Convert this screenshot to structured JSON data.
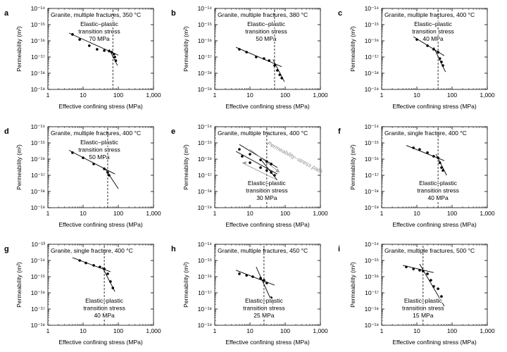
{
  "chart_data": [
    {
      "type": "scatter",
      "panel_label": "a",
      "title": "Granite, multiple fractures, 350 °C",
      "xlabel": "Effective confining stress (MPa)",
      "ylabel": "Permeability (m²)",
      "xscale": "log",
      "yscale": "log",
      "xlim": [
        1,
        1000
      ],
      "ylim": [
        -19,
        -14
      ],
      "x_ticks": [
        "1",
        "10",
        "100",
        "1,000"
      ],
      "y_ticks": [
        "10⁻¹⁹",
        "10⁻¹⁸",
        "10⁻¹⁷",
        "10⁻¹⁶",
        "10⁻¹⁵",
        "10⁻¹⁴"
      ],
      "transition_stress": 70,
      "annotation": [
        "Elastic–plastic",
        "transition stress",
        "70 MPa"
      ],
      "annotation_position": "upper-middle",
      "points": [
        [
          5,
          2.5e-16
        ],
        [
          8,
          1.2e-16
        ],
        [
          15,
          5e-17
        ],
        [
          25,
          3e-17
        ],
        [
          40,
          2.5e-17
        ],
        [
          55,
          2.3e-17
        ],
        [
          65,
          2e-17
        ],
        [
          75,
          1.5e-17
        ],
        [
          80,
          1e-17
        ],
        [
          85,
          6e-18
        ]
      ],
      "fit_lines": [
        [
          [
            4,
            3e-16
          ],
          [
            100,
            1.3e-17
          ]
        ],
        [
          [
            55,
            3e-17
          ],
          [
            95,
            3e-18
          ]
        ]
      ]
    },
    {
      "type": "scatter",
      "panel_label": "b",
      "title": "Granite, multiple fractures, 380 °C",
      "xlabel": "Effective confining stress (MPa)",
      "ylabel": "Permeability (m²)",
      "xscale": "log",
      "yscale": "log",
      "xlim": [
        1,
        1000
      ],
      "ylim": [
        -19,
        -14
      ],
      "x_ticks": [
        "1",
        "10",
        "100",
        "1,000"
      ],
      "y_ticks": [
        "10⁻¹⁹",
        "10⁻¹⁸",
        "10⁻¹⁷",
        "10⁻¹⁶",
        "10⁻¹⁵",
        "10⁻¹⁴"
      ],
      "transition_stress": 50,
      "annotation": [
        "Elastic–plastic",
        "transition stress",
        "50 MPa"
      ],
      "annotation_position": "upper-middle",
      "points": [
        [
          5,
          3e-17
        ],
        [
          8,
          2e-17
        ],
        [
          15,
          1e-17
        ],
        [
          25,
          8e-18
        ],
        [
          35,
          6e-18
        ],
        [
          50,
          3e-18
        ],
        [
          60,
          1.5e-18
        ],
        [
          70,
          8e-19
        ],
        [
          80,
          5e-19
        ]
      ],
      "fit_lines": [
        [
          [
            4,
            4e-17
          ],
          [
            80,
            2.5e-18
          ]
        ],
        [
          [
            45,
            7e-18
          ],
          [
            95,
            3e-19
          ]
        ]
      ]
    },
    {
      "type": "scatter",
      "panel_label": "c",
      "title": "Granite, multiple fractures, 400 °C",
      "xlabel": "Effective confining stress (MPa)",
      "ylabel": "Permeability (m²)",
      "xscale": "log",
      "yscale": "log",
      "xlim": [
        1,
        1000
      ],
      "ylim": [
        -19,
        -14
      ],
      "x_ticks": [
        "1",
        "10",
        "100",
        "1,000"
      ],
      "y_ticks": [
        "10⁻¹⁹",
        "10⁻¹⁸",
        "10⁻¹⁷",
        "10⁻¹⁶",
        "10⁻¹⁵",
        "10⁻¹⁴"
      ],
      "transition_stress": 40,
      "annotation": [
        "Elastic–plastic",
        "transition stress",
        "40 MPa"
      ],
      "annotation_position": "upper-middle",
      "points": [
        [
          10,
          1.2e-16
        ],
        [
          20,
          5e-17
        ],
        [
          30,
          3e-17
        ],
        [
          40,
          2e-17
        ],
        [
          45,
          8e-18
        ],
        [
          50,
          5e-18
        ],
        [
          55,
          3e-18
        ]
      ],
      "fit_lines": [
        [
          [
            8,
            1.8e-16
          ],
          [
            60,
            1.2e-17
          ]
        ],
        [
          [
            30,
            4e-17
          ],
          [
            65,
            1.2e-18
          ]
        ]
      ]
    },
    {
      "type": "scatter",
      "panel_label": "d",
      "title": "Granite, multiple fractures, 400 °C",
      "xlabel": "Effective confining stress (MPa)",
      "ylabel": "Permeability (m²)",
      "xscale": "log",
      "yscale": "log",
      "xlim": [
        1,
        1000
      ],
      "ylim": [
        -19,
        -14
      ],
      "x_ticks": [
        "1",
        "10",
        "100",
        "1,000"
      ],
      "y_ticks": [
        "10⁻¹⁹",
        "10⁻¹⁸",
        "10⁻¹⁷",
        "10⁻¹⁶",
        "10⁻¹⁵",
        "10⁻¹⁴"
      ],
      "transition_stress": 50,
      "annotation": [
        "Elastic–plastic",
        "transition stress",
        "50 MPa"
      ],
      "annotation_position": "upper-middle",
      "points": [
        [
          5,
          2.5e-16
        ],
        [
          10,
          1.2e-16
        ],
        [
          20,
          5e-17
        ],
        [
          40,
          2.5e-17
        ],
        [
          50,
          1.5e-17
        ],
        [
          55,
          1e-17
        ]
      ],
      "fit_lines": [
        [
          [
            4,
            3.5e-16
          ],
          [
            80,
            1.2e-17
          ]
        ],
        [
          [
            40,
            3e-17
          ],
          [
            100,
            1.5e-18
          ]
        ]
      ]
    },
    {
      "type": "scatter",
      "panel_label": "e",
      "title": "Granite, multiple fractures, 400 °C",
      "xlabel": "Effective confining stress (MPa)",
      "ylabel": "Permeability (m²)",
      "xscale": "log",
      "yscale": "log",
      "xlim": [
        1,
        1000
      ],
      "ylim": [
        -19,
        -14
      ],
      "x_ticks": [
        "1",
        "10",
        "100",
        "1,000"
      ],
      "y_ticks": [
        "10⁻¹⁹",
        "10⁻¹⁸",
        "10⁻¹⁷",
        "10⁻¹⁶",
        "10⁻¹⁵",
        "10⁻¹⁴"
      ],
      "transition_stress": 30,
      "annotation": [
        "Elastic–plastic",
        "transition stress",
        "30 MPa"
      ],
      "annotation_position": "lower-middle",
      "path_label": "Permeability–stress path",
      "points": [
        [
          5,
          4e-16
        ],
        [
          10,
          2e-16
        ],
        [
          20,
          9e-17
        ],
        [
          30,
          7e-17
        ],
        [
          40,
          5e-17
        ],
        [
          6,
          1.5e-16
        ],
        [
          10,
          6e-17
        ],
        [
          20,
          3e-17
        ],
        [
          30,
          2e-17
        ],
        [
          40,
          1.5e-17
        ],
        [
          50,
          1e-17
        ]
      ],
      "fit_lines": [
        [
          [
            5,
            8e-16
          ],
          [
            60,
            3e-17
          ]
        ],
        [
          [
            4,
            3e-16
          ],
          [
            60,
            1.2e-17
          ]
        ],
        [
          [
            20,
            1e-16
          ],
          [
            60,
            5e-18
          ]
        ]
      ]
    },
    {
      "type": "scatter",
      "panel_label": "f",
      "title": "Granite, single fracture, 400 °C",
      "xlabel": "Effective confining stress (MPa)",
      "ylabel": "Permeability (m²)",
      "xscale": "log",
      "yscale": "log",
      "xlim": [
        1,
        1000
      ],
      "ylim": [
        -19,
        -14
      ],
      "x_ticks": [
        "1",
        "10",
        "100",
        "1,000"
      ],
      "y_ticks": [
        "10⁻¹⁹",
        "10⁻¹⁸",
        "10⁻¹⁷",
        "10⁻¹⁶",
        "10⁻¹⁵",
        "10⁻¹⁴"
      ],
      "transition_stress": 40,
      "annotation": [
        "Elastic–plastic",
        "transition stress",
        "40 MPa"
      ],
      "annotation_position": "lower-middle",
      "points": [
        [
          8,
          5e-16
        ],
        [
          12,
          4e-16
        ],
        [
          20,
          2.5e-16
        ],
        [
          30,
          1.5e-16
        ],
        [
          40,
          1.2e-16
        ],
        [
          45,
          6e-17
        ],
        [
          50,
          3e-17
        ],
        [
          55,
          2e-17
        ]
      ],
      "fit_lines": [
        [
          [
            5,
            7e-16
          ],
          [
            60,
            8e-17
          ]
        ],
        [
          [
            35,
            2e-16
          ],
          [
            70,
            1e-17
          ]
        ]
      ]
    },
    {
      "type": "scatter",
      "panel_label": "g",
      "title": "Granite, single fracture, 400 °C",
      "xlabel": "Effective confining stress (MPa)",
      "ylabel": "Permeability (m²)",
      "xscale": "log",
      "yscale": "log",
      "xlim": [
        1,
        1000
      ],
      "ylim": [
        -18,
        -13
      ],
      "x_ticks": [
        "1",
        "10",
        "100",
        "1,000"
      ],
      "y_ticks": [
        "10⁻¹⁸",
        "10⁻¹⁷",
        "10⁻¹⁶",
        "10⁻¹⁵",
        "10⁻¹⁴",
        "10⁻¹³"
      ],
      "transition_stress": 40,
      "annotation": [
        "Elastic–plastic",
        "transition stress",
        "40 MPa"
      ],
      "annotation_position": "lower-middle",
      "points": [
        [
          8,
          1e-14
        ],
        [
          12,
          7e-15
        ],
        [
          20,
          5e-15
        ],
        [
          30,
          4e-15
        ],
        [
          40,
          3e-15
        ],
        [
          50,
          1.5e-15
        ],
        [
          60,
          5e-16
        ],
        [
          70,
          2e-16
        ]
      ],
      "fit_lines": [
        [
          [
            5,
            1.5e-14
          ],
          [
            60,
            2e-15
          ]
        ],
        [
          [
            35,
            4e-15
          ],
          [
            80,
            1.2e-16
          ]
        ]
      ]
    },
    {
      "type": "scatter",
      "panel_label": "h",
      "title": "Granite, multiple fractures, 450 °C",
      "xlabel": "Effective confining stress (MPa)",
      "ylabel": "Permeability (m²)",
      "xscale": "log",
      "yscale": "log",
      "xlim": [
        1,
        1000
      ],
      "ylim": [
        -19,
        -14
      ],
      "x_ticks": [
        "1",
        "10",
        "100",
        "1,000"
      ],
      "y_ticks": [
        "10⁻¹⁹",
        "10⁻¹⁸",
        "10⁻¹⁷",
        "10⁻¹⁶",
        "10⁻¹⁵",
        "10⁻¹⁴"
      ],
      "transition_stress": 25,
      "annotation": [
        "Elastic–plastic",
        "transition stress",
        "25 MPa"
      ],
      "annotation_position": "lower-middle",
      "points": [
        [
          5,
          1.5e-16
        ],
        [
          8,
          1.2e-16
        ],
        [
          12,
          1e-16
        ],
        [
          20,
          8e-17
        ],
        [
          25,
          6e-17
        ],
        [
          30,
          4e-17
        ],
        [
          40,
          5e-18
        ]
      ],
      "fit_lines": [
        [
          [
            4,
            2.5e-16
          ],
          [
            50,
            3e-17
          ]
        ],
        [
          [
            15,
            4e-16
          ],
          [
            45,
            2e-18
          ]
        ]
      ]
    },
    {
      "type": "scatter",
      "panel_label": "i",
      "title": "Granite, multiple fractures, 500 °C",
      "xlabel": "Effective confining stress (MPa)",
      "ylabel": "Permeability (m²)",
      "xscale": "log",
      "yscale": "log",
      "xlim": [
        1,
        1000
      ],
      "ylim": [
        -19,
        -14
      ],
      "x_ticks": [
        "1",
        "10",
        "100",
        "1,000"
      ],
      "y_ticks": [
        "10⁻¹⁹",
        "10⁻¹⁸",
        "10⁻¹⁷",
        "10⁻¹⁶",
        "10⁻¹⁵",
        "10⁻¹⁴"
      ],
      "transition_stress": 15,
      "annotation": [
        "Elastic–plastic",
        "transition stress",
        "15 MPa"
      ],
      "annotation_position": "lower-middle",
      "points": [
        [
          5,
          4e-16
        ],
        [
          8,
          3e-16
        ],
        [
          12,
          2.5e-16
        ],
        [
          15,
          2.2e-16
        ],
        [
          20,
          1.5e-16
        ],
        [
          25,
          6e-17
        ],
        [
          30,
          2.5e-17
        ],
        [
          40,
          1.8e-17
        ],
        [
          50,
          6e-18
        ]
      ],
      "fit_lines": [
        [
          [
            4,
            5e-16
          ],
          [
            30,
            1.8e-16
          ]
        ],
        [
          [
            12,
            6e-16
          ],
          [
            60,
            1.5e-18
          ]
        ]
      ]
    }
  ]
}
